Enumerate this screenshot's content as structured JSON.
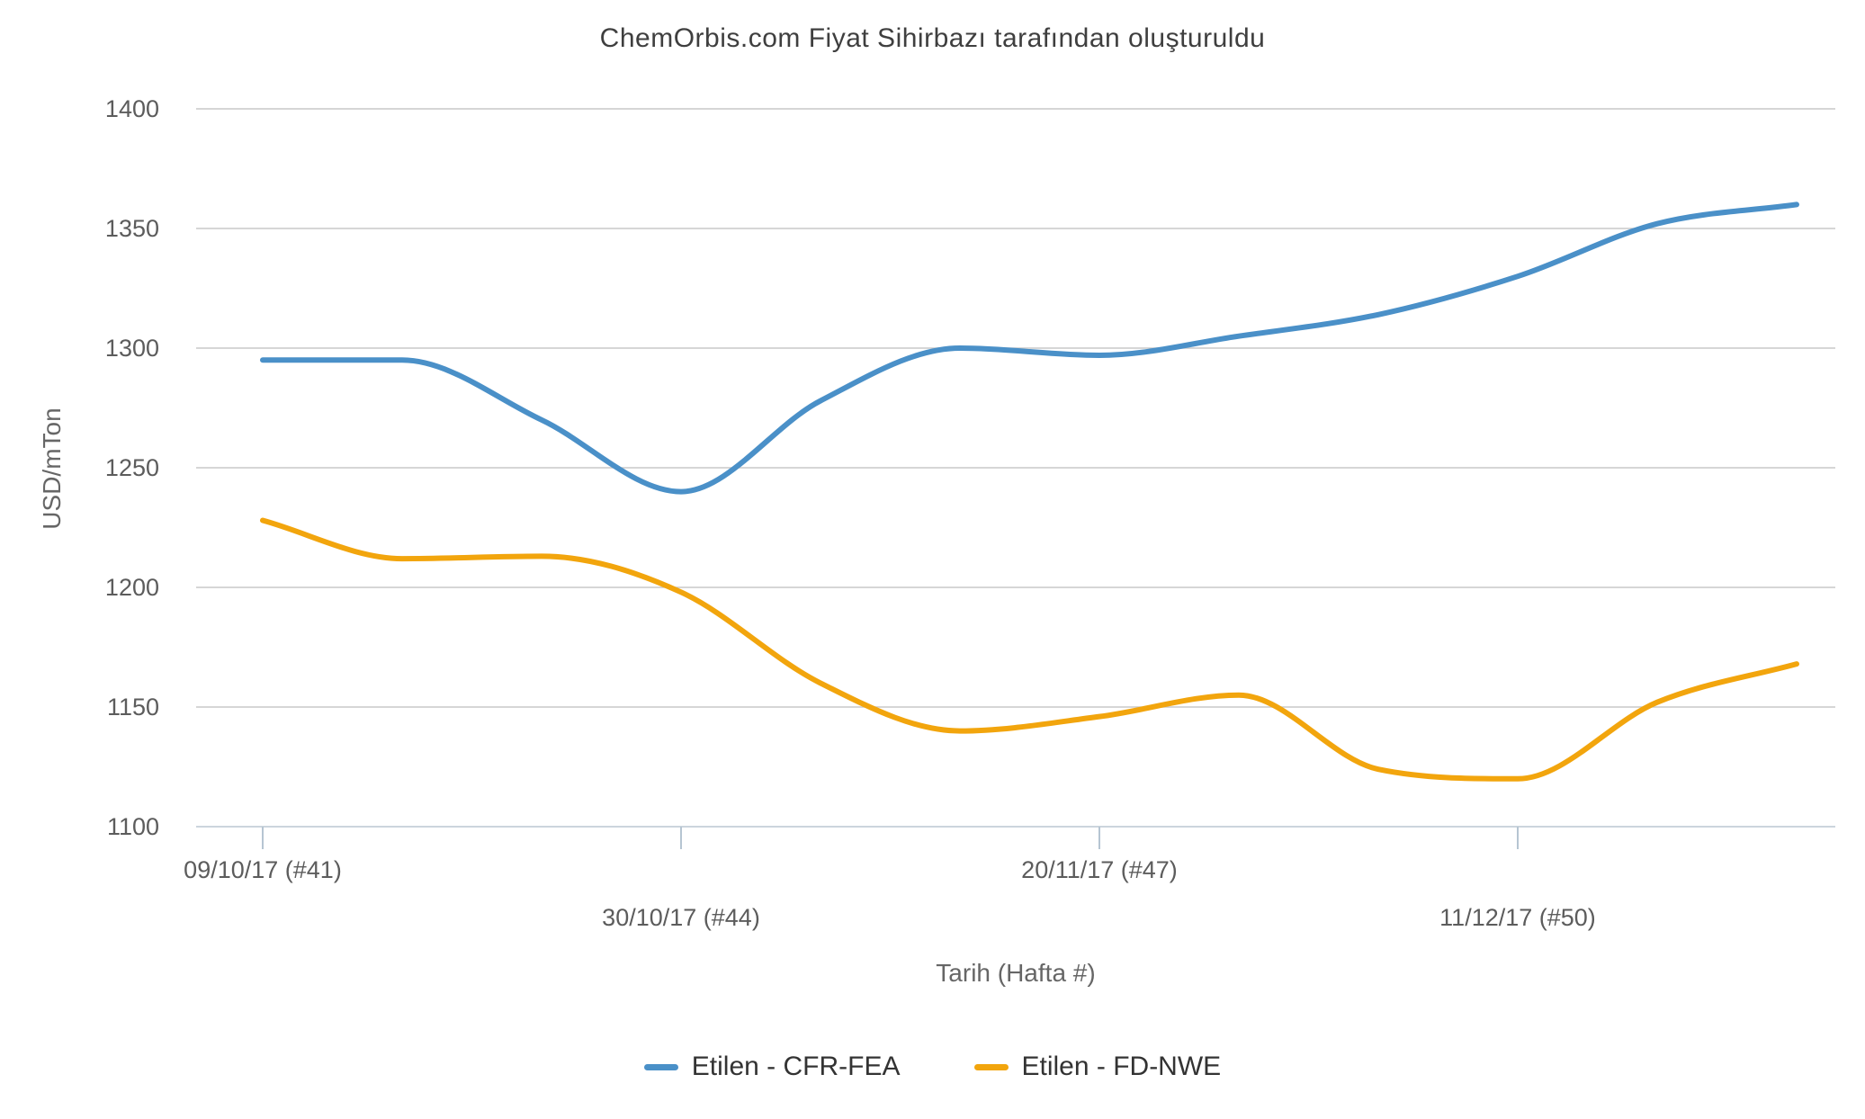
{
  "title": "ChemOrbis.com Fiyat Sihirbazı tarafından oluşturuldu",
  "chart_data": {
    "type": "line",
    "title": "ChemOrbis.com Fiyat Sihirbazı tarafından oluşturuldu",
    "xlabel": "Tarih (Hafta #)",
    "ylabel": "USD/mTon",
    "ylim": [
      1100,
      1400
    ],
    "ytick_step": 50,
    "yticks": [
      1100,
      1150,
      1200,
      1250,
      1300,
      1350,
      1400
    ],
    "grid": true,
    "legend_position": "bottom",
    "x_weeks": [
      41,
      42,
      43,
      44,
      45,
      46,
      47,
      48,
      49,
      50,
      51,
      52
    ],
    "xticks": [
      {
        "week": 41,
        "label": "09/10/17 (#41)",
        "row": 1
      },
      {
        "week": 44,
        "label": "30/10/17 (#44)",
        "row": 2
      },
      {
        "week": 47,
        "label": "20/11/17 (#47)",
        "row": 1
      },
      {
        "week": 50,
        "label": "11/12/17 (#50)",
        "row": 2
      }
    ],
    "series": [
      {
        "name": "Etilen - CFR-FEA",
        "color": "#4a90c8",
        "values": [
          1295,
          1295,
          1270,
          1240,
          1278,
          1300,
          1297,
          1305,
          1314,
          1330,
          1352,
          1360
        ]
      },
      {
        "name": "Etilen - FD-NWE",
        "color": "#f2a50d",
        "values": [
          1228,
          1212,
          1213,
          1198,
          1160,
          1140,
          1146,
          1155,
          1124,
          1120,
          1152,
          1168
        ]
      }
    ]
  },
  "legend": {
    "items": [
      {
        "label": "Etilen - CFR-FEA",
        "color": "#4a90c8"
      },
      {
        "label": "Etilen - FD-NWE",
        "color": "#f2a50d"
      }
    ]
  },
  "colors": {
    "gridline": "#c9c9c9",
    "axis_line": "#ccd5dd",
    "tick_mark": "#b6c5d2",
    "title_text": "#3f3f3f",
    "tick_label_text": "#5c5c5c",
    "axis_title_text": "#666666",
    "legend_text": "#333333"
  }
}
